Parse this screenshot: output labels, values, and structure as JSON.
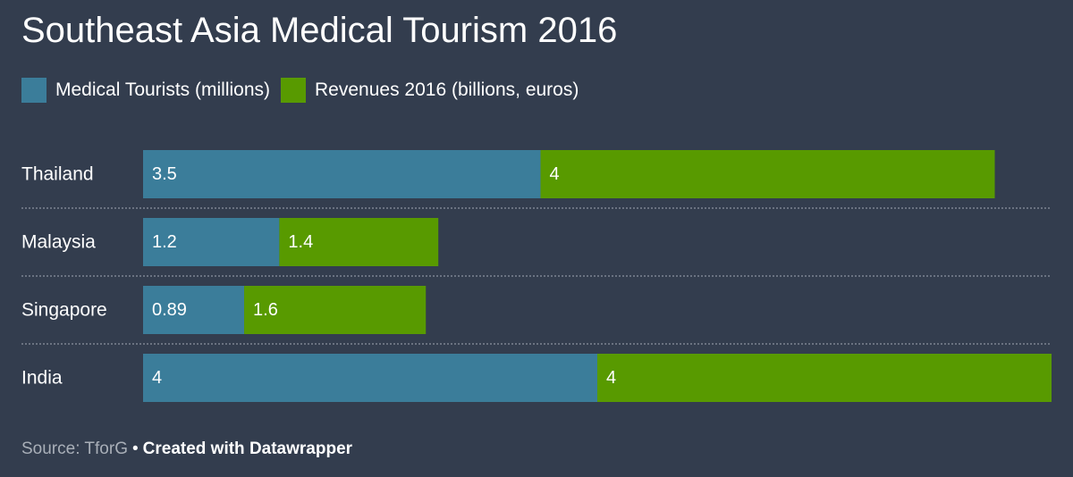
{
  "title": "Southeast Asia Medical Tourism 2016",
  "colors": {
    "background": "#333d4e",
    "series1": "#3b7d9a",
    "series2": "#589a00",
    "divider": "#8a92a0"
  },
  "chart_data": {
    "type": "bar",
    "orientation": "horizontal",
    "stacked": true,
    "categories": [
      "Thailand",
      "Malaysia",
      "Singapore",
      "India"
    ],
    "series": [
      {
        "name": "Medical Tourists (millions)",
        "values": [
          3.5,
          1.2,
          0.89,
          4
        ],
        "labels": [
          "3.5",
          "1.2",
          "0.89",
          "4"
        ],
        "color": "#3b7d9a"
      },
      {
        "name": "Revenues 2016 (billions, euros)",
        "values": [
          4,
          1.4,
          1.6,
          4
        ],
        "labels": [
          "4",
          "1.4",
          "1.6",
          "4"
        ],
        "color": "#589a00"
      }
    ],
    "xlim": [
      0,
      8
    ],
    "grid": false,
    "legend": "top-left"
  },
  "footer": {
    "source": "Source: TforG",
    "separator": "•",
    "credit": "Created with Datawrapper"
  }
}
